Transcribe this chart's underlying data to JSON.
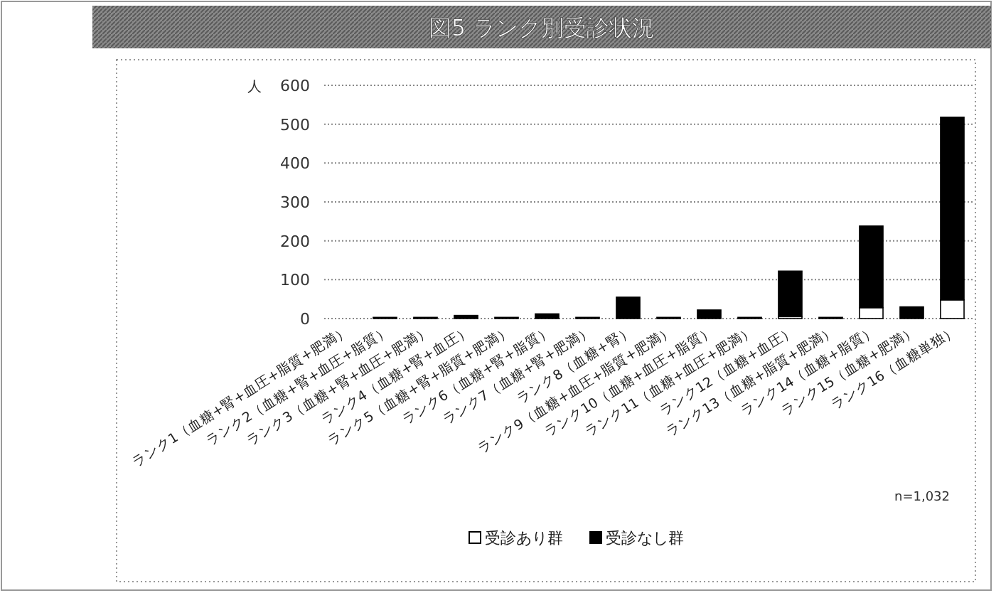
{
  "chart_data": {
    "type": "bar",
    "title": "図5 ランク別受診状況",
    "ylabel": "人",
    "stacked": true,
    "grid": "y",
    "legend": "bottom",
    "categories": [
      "ランク1（血糖+腎+血圧+脂質+肥満）",
      "ランク2（血糖+腎+血圧+脂質）",
      "ランク3（血糖+腎+血圧+肥満）",
      "ランク4（血糖+腎+血圧）",
      "ランク5（血糖+腎+脂質+肥満）",
      "ランク6（血糖+腎+脂質）",
      "ランク7（血糖+腎+肥満）",
      "ランク8（血糖+腎）",
      "ランク9（血糖+血圧+脂質+肥満）",
      "ランク10（血糖+血圧+脂質）",
      "ランク11（血糖+血圧+肥満）",
      "ランク12（血糖+血圧）",
      "ランク13（血糖+脂質+肥満）",
      "ランク14（血糖+脂質）",
      "ランク15（血糖+肥満）",
      "ランク16（血糖単独）"
    ],
    "series": [
      {
        "name": "受診あり群",
        "color": "#ffffff",
        "values": [
          null,
          null,
          null,
          null,
          null,
          null,
          null,
          null,
          null,
          null,
          null,
          5,
          null,
          28,
          null,
          48
        ]
      },
      {
        "name": "受診なし群",
        "color": "#000000",
        "values": [
          0,
          3,
          3,
          8,
          3,
          12,
          3,
          55,
          3,
          22,
          3,
          117,
          3,
          210,
          30,
          470
        ]
      }
    ],
    "ylim": [
      0,
      600
    ],
    "yticks": [
      0,
      100,
      200,
      300,
      400,
      500,
      600
    ],
    "annotations": [
      "n=1,032"
    ]
  }
}
